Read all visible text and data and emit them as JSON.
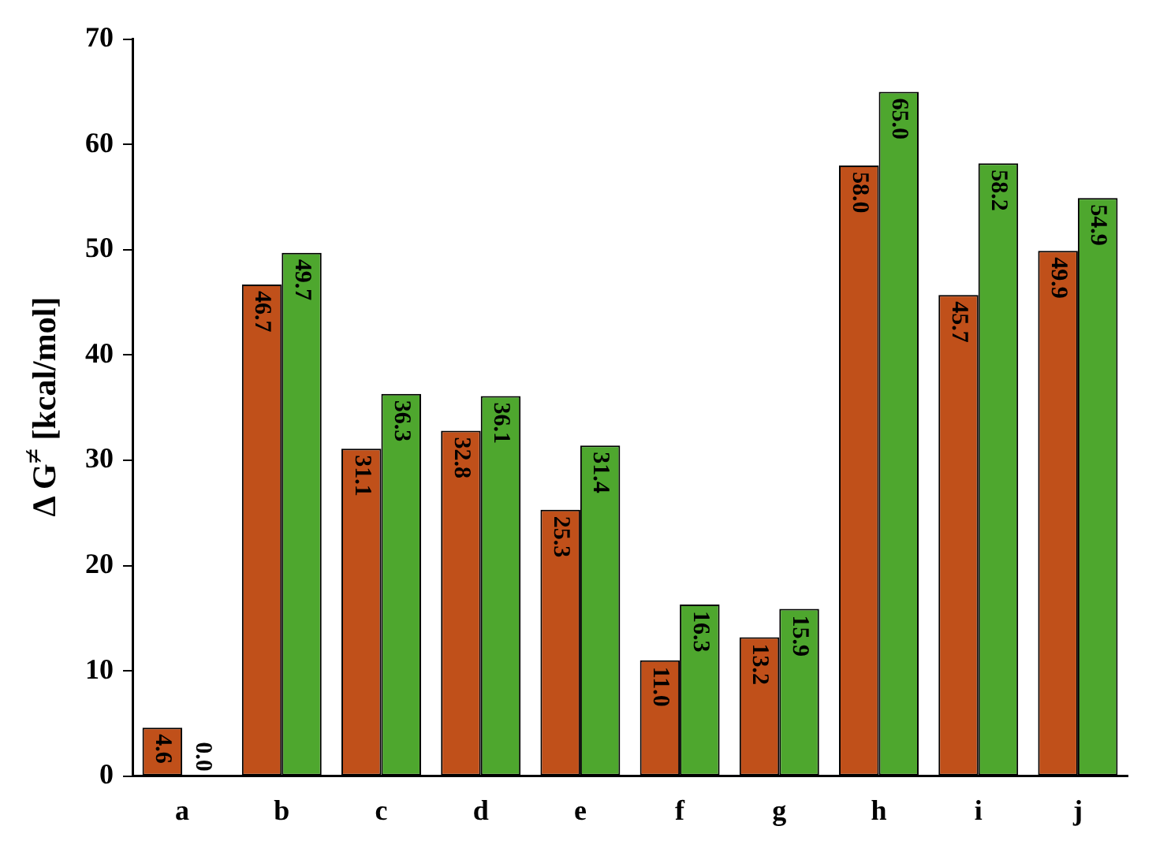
{
  "chart_data": {
    "type": "bar",
    "ylabel": "Δ G$^{≠}$ [kcal/mol]",
    "categories": [
      "a",
      "b",
      "c",
      "d",
      "e",
      "f",
      "g",
      "h",
      "i",
      "j"
    ],
    "series": [
      {
        "color": "#c0501a",
        "values": [
          4.6,
          46.7,
          31.1,
          32.8,
          25.3,
          11.0,
          13.2,
          58.0,
          45.7,
          49.9
        ],
        "value_labels": [
          "4.6",
          "46.7",
          "31.1",
          "32.8",
          "25.3",
          "11.0",
          "13.2",
          "58.0",
          "45.7",
          "49.9"
        ]
      },
      {
        "color": "#4ea72e",
        "values": [
          0.0,
          49.7,
          36.3,
          36.1,
          31.4,
          16.3,
          15.9,
          65.0,
          58.2,
          54.9
        ],
        "value_labels": [
          "0.0",
          "49.7",
          "36.3",
          "36.1",
          "31.4",
          "16.3",
          "15.9",
          "65.0",
          "58.2",
          "54.9"
        ]
      }
    ],
    "ylim": [
      0,
      70
    ],
    "yticks": [
      0,
      10,
      20,
      30,
      40,
      50,
      60,
      70
    ],
    "grid": false,
    "legend": false
  }
}
